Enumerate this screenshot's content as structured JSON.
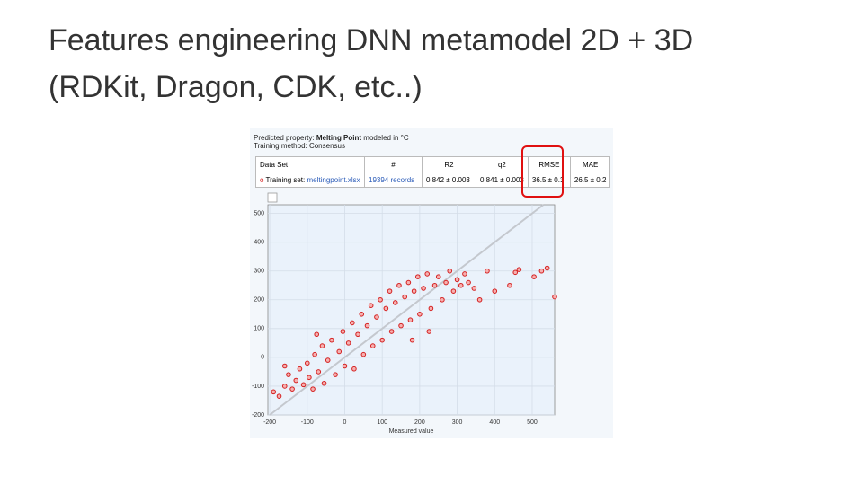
{
  "slide": {
    "title_lines": [
      "Features engineering DNN metamodel 2D + 3D",
      "(RDKit, Dragon, CDK, etc..)"
    ]
  },
  "panel": {
    "property_prefix": "Predicted property:",
    "property": "Melting Point",
    "property_suffix": "modeled in °C",
    "method": "Training method: Consensus"
  },
  "table": {
    "header": [
      "Data Set",
      "#",
      "R2",
      "q2",
      "RMSE",
      "MAE"
    ],
    "row": {
      "label": "Training set:",
      "file": "meltingpoint.xlsx",
      "count": "19394 records",
      "r2": "0.842 ± 0.003",
      "q2": "0.841 ± 0.003",
      "rmse": "36.5 ± 0.3",
      "mae": "26.5 ± 0.2"
    }
  },
  "chart_data": {
    "type": "scatter",
    "x_label": "Measured value",
    "color": "#d42020",
    "xlim": [
      -205,
      560
    ],
    "ylim": [
      -200,
      530
    ],
    "xticks": [
      -200,
      -100,
      0,
      100,
      200,
      300,
      400,
      500
    ],
    "yticks": [
      -200,
      -100,
      0,
      100,
      200,
      300,
      400,
      500
    ],
    "grid": true,
    "x": [
      -190,
      -175,
      -160,
      -150,
      -140,
      -130,
      -120,
      -110,
      -100,
      -95,
      -85,
      -80,
      -70,
      -60,
      -55,
      -45,
      -35,
      -25,
      -15,
      -5,
      0,
      10,
      20,
      25,
      35,
      45,
      50,
      60,
      70,
      75,
      85,
      95,
      100,
      110,
      120,
      125,
      135,
      145,
      150,
      160,
      170,
      175,
      185,
      195,
      200,
      210,
      220,
      230,
      240,
      250,
      260,
      270,
      280,
      290,
      300,
      310,
      320,
      330,
      345,
      360,
      225,
      180,
      -160,
      -75,
      440,
      455,
      465,
      505,
      525,
      540,
      560,
      400,
      380
    ],
    "y": [
      -120,
      -135,
      -100,
      -60,
      -110,
      -80,
      -40,
      -95,
      -20,
      -70,
      -110,
      10,
      -50,
      40,
      -90,
      -10,
      60,
      -60,
      20,
      90,
      -30,
      50,
      120,
      -40,
      80,
      150,
      10,
      110,
      180,
      40,
      140,
      200,
      60,
      170,
      230,
      90,
      190,
      250,
      110,
      210,
      260,
      130,
      230,
      280,
      150,
      240,
      290,
      170,
      250,
      280,
      200,
      260,
      300,
      230,
      270,
      250,
      290,
      260,
      240,
      200,
      90,
      60,
      -30,
      80,
      250,
      295,
      305,
      280,
      300,
      310,
      210,
      230,
      300
    ]
  }
}
